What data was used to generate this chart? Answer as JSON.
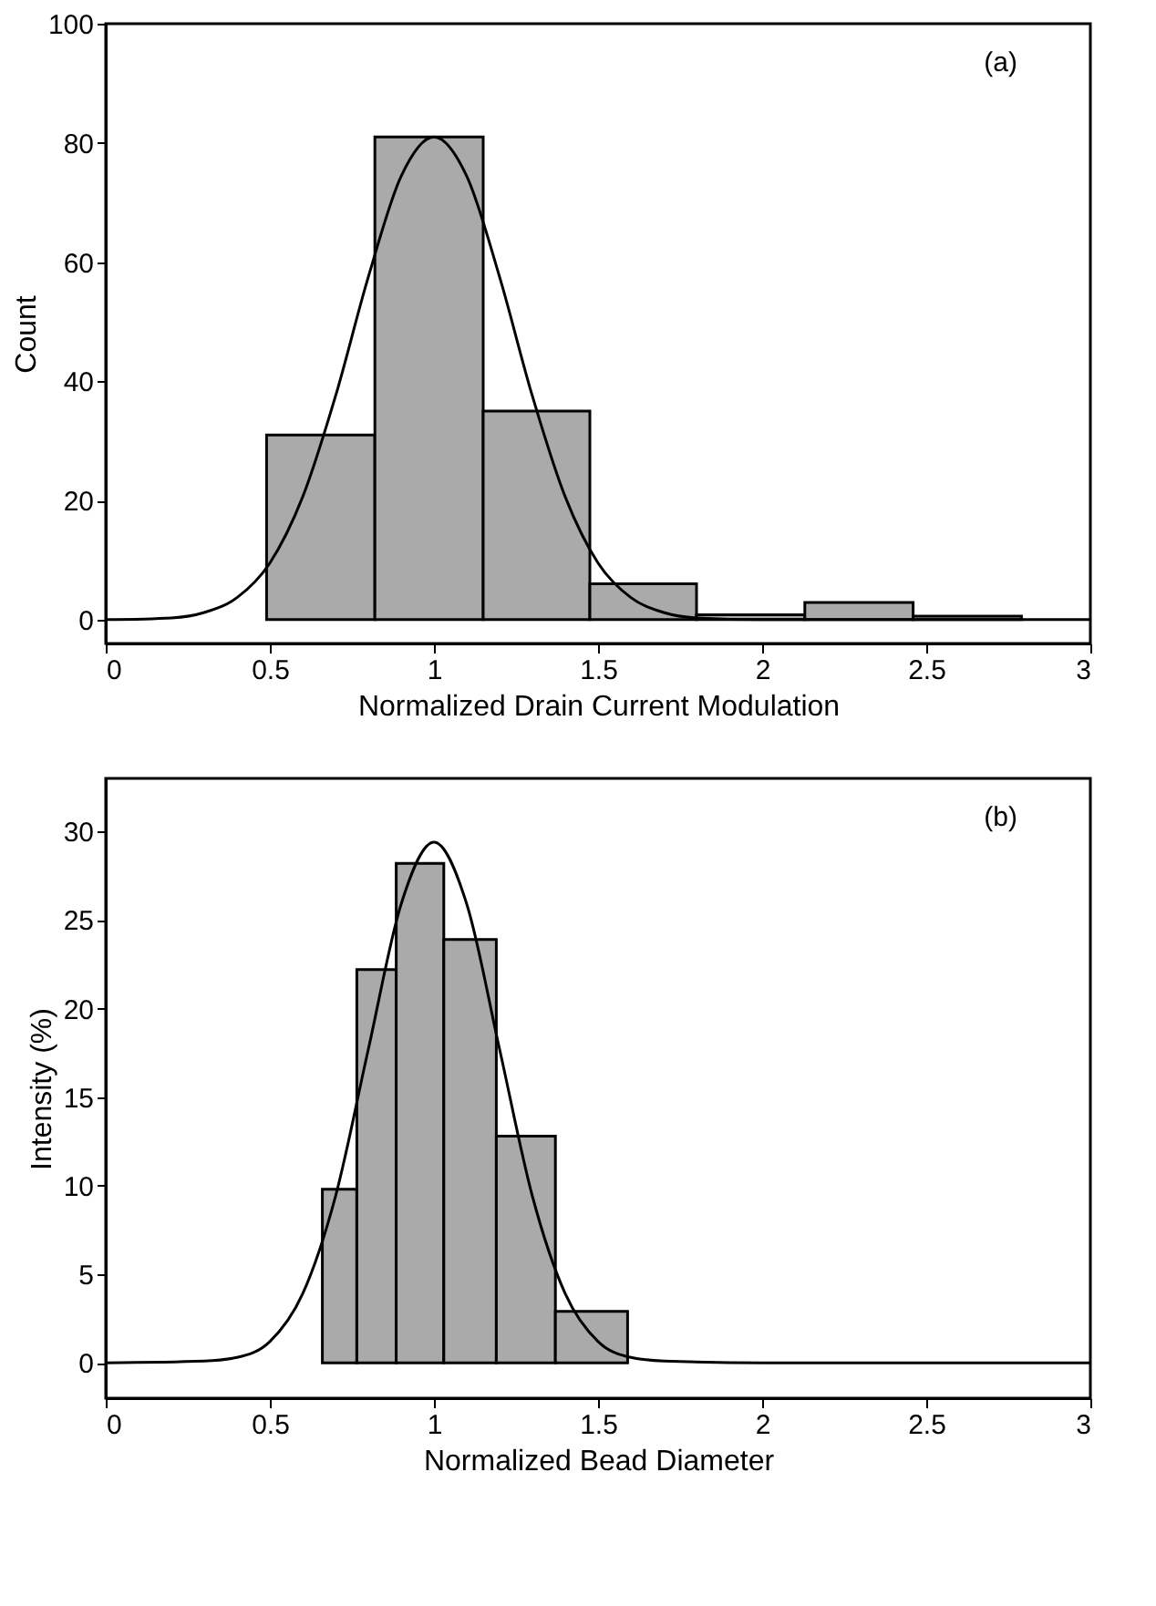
{
  "chart_data": [
    {
      "type": "histogram",
      "xlabel": "Normalized Drain Current Modulation",
      "ylabel": "Count",
      "annotations": [
        "(a)"
      ],
      "color": "#aaaaaa",
      "bins": [
        0.49,
        0.82,
        1.15,
        1.475,
        1.8,
        2.13,
        2.46,
        2.79
      ],
      "values": [
        31,
        81,
        35,
        6,
        0.8,
        2.9,
        0.6
      ],
      "xlim": [
        0,
        3
      ],
      "xticks": [
        0,
        0.5,
        1,
        1.5,
        2,
        2.5,
        3
      ],
      "ylim": [
        -4,
        100
      ],
      "yticks": [
        0,
        20,
        40,
        60,
        80,
        100
      ],
      "series": [
        {
          "type": "line",
          "color": "#000000",
          "x": [
            0,
            0.2,
            0.3,
            0.4,
            0.5,
            0.6,
            0.7,
            0.8,
            0.9,
            1,
            1.1,
            1.2,
            1.3,
            1.4,
            1.5,
            1.6,
            1.7,
            1.8,
            2,
            3
          ],
          "values": [
            0,
            0.3,
            1.2,
            3.7,
            9.5,
            20.6,
            37.5,
            57.5,
            74.4,
            81,
            74.4,
            57.5,
            37.5,
            20.6,
            9.5,
            3.7,
            1.2,
            0.3,
            0,
            0
          ]
        }
      ]
    },
    {
      "type": "histogram",
      "xlabel": "Normalized Bead Diameter",
      "ylabel": "Intensity (%)",
      "annotations": [
        "(b)"
      ],
      "color": "#aaaaaa",
      "bins": [
        0.66,
        0.765,
        0.885,
        1.03,
        1.19,
        1.37,
        1.59
      ],
      "values": [
        9.8,
        22.2,
        28.2,
        23.9,
        12.8,
        2.9
      ],
      "xlim": [
        0,
        3
      ],
      "xticks": [
        0,
        0.5,
        1,
        1.5,
        2,
        2.5,
        3
      ],
      "ylim": [
        -2,
        33
      ],
      "yticks": [
        0,
        5,
        10,
        15,
        20,
        25,
        30
      ],
      "series": [
        {
          "type": "line",
          "color": "#000000",
          "x": [
            0,
            0.3,
            0.4,
            0.5,
            0.6,
            0.7,
            0.8,
            0.9,
            1,
            1.1,
            1.2,
            1.3,
            1.4,
            1.5,
            1.6,
            1.7,
            2,
            3
          ],
          "values": [
            0,
            0.1,
            0.3,
            1.2,
            3.9,
            9.4,
            17.7,
            25.9,
            29.4,
            25.9,
            17.7,
            9.4,
            3.9,
            1.2,
            0.3,
            0.1,
            0,
            0
          ]
        }
      ]
    }
  ]
}
